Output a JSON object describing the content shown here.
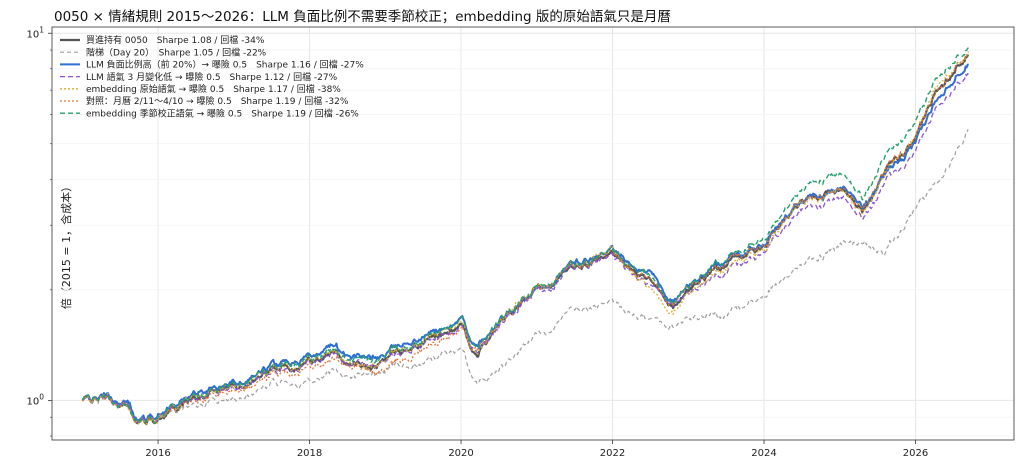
{
  "chart_data": {
    "type": "line",
    "title": "0050 × 情緒規則 2015～2026：LLM 負面比例不需要季節校正；embedding 版的原始語氣只是月曆",
    "xlabel": "",
    "ylabel": "倍（2015 = 1，含成本）",
    "y_scale": "log",
    "ylim": [
      0.78,
      10.4
    ],
    "xlim": [
      2014.6,
      2027.3
    ],
    "x_ticks": [
      "2016",
      "2018",
      "2020",
      "2022",
      "2024",
      "2026"
    ],
    "y_ticks": [
      {
        "value": 1,
        "base": "10",
        "exp": "0"
      },
      {
        "value": 10,
        "base": "10",
        "exp": "1"
      }
    ],
    "grid": true,
    "legend_position": "top-left",
    "anchors": [
      2015.0,
      2015.3,
      2015.6,
      2015.75,
      2016.0,
      2016.2,
      2016.5,
      2017.0,
      2017.5,
      2018.0,
      2018.3,
      2018.8,
      2019.0,
      2019.5,
      2020.0,
      2020.2,
      2020.5,
      2021.0,
      2021.5,
      2022.0,
      2022.5,
      2022.8,
      2023.0,
      2023.5,
      2024.0,
      2024.5,
      2025.0,
      2025.3,
      2025.6,
      2026.0,
      2026.3,
      2026.7
    ],
    "series": [
      {
        "name": "買進持有 0050　Sharpe 1.08 / 回檔 -34%",
        "color": "#555555",
        "dash": "",
        "width": 2.2,
        "values": [
          1.0,
          1.02,
          0.95,
          0.87,
          0.9,
          0.96,
          1.02,
          1.1,
          1.2,
          1.3,
          1.35,
          1.2,
          1.3,
          1.45,
          1.6,
          1.3,
          1.6,
          2.0,
          2.3,
          2.45,
          2.1,
          1.8,
          2.0,
          2.4,
          2.6,
          3.6,
          3.7,
          3.3,
          4.2,
          5.0,
          7.2,
          9.0
        ]
      },
      {
        "name": "階梯（Day 20）　Sharpe 1.05 / 回檔 -22%",
        "color": "#a0a0a0",
        "dash": "4,3",
        "width": 1.2,
        "values": [
          1.0,
          1.01,
          0.95,
          0.88,
          0.9,
          0.93,
          0.97,
          1.02,
          1.1,
          1.15,
          1.2,
          1.15,
          1.2,
          1.28,
          1.38,
          1.1,
          1.2,
          1.5,
          1.75,
          1.8,
          1.65,
          1.6,
          1.65,
          1.75,
          1.9,
          2.4,
          2.6,
          2.7,
          2.5,
          3.2,
          4.0,
          5.6
        ]
      },
      {
        "name": "LLM 負面比例高（前 20%）→ 曝險 0.5　Sharpe 1.16 / 回檔 -27%",
        "color": "#2e6fd0",
        "dash": "",
        "width": 2.0,
        "values": [
          1.0,
          1.03,
          0.97,
          0.89,
          0.92,
          0.98,
          1.04,
          1.12,
          1.23,
          1.34,
          1.4,
          1.28,
          1.35,
          1.5,
          1.65,
          1.38,
          1.62,
          2.0,
          2.35,
          2.5,
          2.2,
          1.85,
          2.05,
          2.45,
          2.65,
          3.6,
          3.75,
          3.4,
          4.1,
          4.9,
          6.8,
          8.5
        ]
      },
      {
        "name": "LLM 語氣 3 月變化低 → 曝險 0.5　Sharpe 1.12 / 回檔 -27%",
        "color": "#8e55d6",
        "dash": "5,3",
        "width": 1.3,
        "values": [
          1.0,
          1.02,
          0.96,
          0.88,
          0.91,
          0.96,
          1.01,
          1.09,
          1.19,
          1.28,
          1.33,
          1.22,
          1.28,
          1.43,
          1.58,
          1.32,
          1.57,
          1.98,
          2.28,
          2.42,
          2.05,
          1.82,
          1.95,
          2.3,
          2.5,
          3.4,
          3.5,
          3.15,
          3.9,
          4.6,
          6.5,
          8.0
        ]
      },
      {
        "name": "embedding 原始語氣 → 曝險 0.5　Sharpe 1.17 / 回檔 -38%",
        "color": "#d9b036",
        "dash": "2,2",
        "width": 1.3,
        "values": [
          1.0,
          1.02,
          0.95,
          0.87,
          0.9,
          0.96,
          1.02,
          1.1,
          1.2,
          1.31,
          1.36,
          1.2,
          1.3,
          1.46,
          1.62,
          1.3,
          1.62,
          2.02,
          2.32,
          2.5,
          2.0,
          1.72,
          1.95,
          2.35,
          2.55,
          3.55,
          3.65,
          3.25,
          4.1,
          5.1,
          7.4,
          9.1
        ]
      },
      {
        "name": "對照：月曆 2/11～4/10 → 曝險 0.5　Sharpe 1.19 / 回檔 -32%",
        "color": "#e0773a",
        "dash": "2,2",
        "width": 1.3,
        "values": [
          1.0,
          1.01,
          0.95,
          0.88,
          0.9,
          0.95,
          1.0,
          1.07,
          1.16,
          1.25,
          1.3,
          1.18,
          1.22,
          1.38,
          1.55,
          1.35,
          1.6,
          2.0,
          2.3,
          2.46,
          2.12,
          1.82,
          2.02,
          2.42,
          2.62,
          3.6,
          3.72,
          3.35,
          4.2,
          5.0,
          7.2,
          9.2
        ]
      },
      {
        "name": "embedding 季節校正語氣 → 曝險 0.5　Sharpe 1.19 / 回檔 -26%",
        "color": "#27a06e",
        "dash": "5,3",
        "width": 1.4,
        "values": [
          1.0,
          1.02,
          0.96,
          0.88,
          0.91,
          0.97,
          1.03,
          1.11,
          1.22,
          1.32,
          1.37,
          1.25,
          1.33,
          1.48,
          1.65,
          1.36,
          1.63,
          2.02,
          2.33,
          2.5,
          2.15,
          1.85,
          2.05,
          2.5,
          2.7,
          3.9,
          4.1,
          3.6,
          4.6,
          5.5,
          7.8,
          9.4
        ]
      }
    ]
  }
}
